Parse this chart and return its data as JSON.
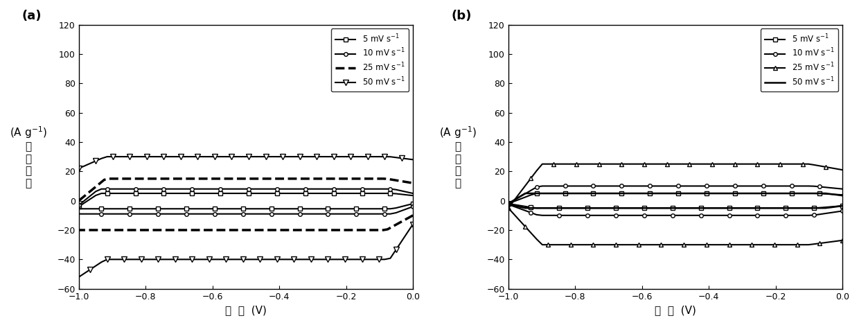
{
  "fig_width": 12.4,
  "fig_height": 4.69,
  "dpi": 100,
  "xlabel": "电  压  (V)",
  "panel_labels": [
    "(a)",
    "(b)"
  ],
  "xlim": [
    -1.0,
    0.0
  ],
  "ylim": [
    -60,
    120
  ],
  "yticks": [
    -60,
    -40,
    -20,
    0,
    20,
    40,
    60,
    80,
    100,
    120
  ],
  "xticks": [
    -1.0,
    -0.8,
    -0.6,
    -0.4,
    -0.2,
    0.0
  ],
  "panel_a": {
    "curves": [
      {
        "label": "5 mV s$^{-1}$",
        "lw": 1.5,
        "ls": "-",
        "marker": "s",
        "ms": 4.0,
        "y_top": 5.0,
        "y_bot": -5.5,
        "y_top_L": -4.0,
        "y_bot_L": -5.5,
        "y_top_R": 3.5,
        "y_bot_R": -2.0,
        "trans_L": 0.06,
        "trans_R": 0.06,
        "markevery": 5
      },
      {
        "label": "10 mV s$^{-1}$",
        "lw": 1.5,
        "ls": "-",
        "marker": "o",
        "ms": 4.0,
        "y_top": 8.0,
        "y_bot": -9.0,
        "y_top_L": -3.0,
        "y_bot_L": -9.0,
        "y_top_R": 5.0,
        "y_bot_R": -4.0,
        "trans_L": 0.06,
        "trans_R": 0.06,
        "markevery": 5
      },
      {
        "label": "25 mV s$^{-1}$",
        "lw": 2.5,
        "ls": "--",
        "marker": "",
        "ms": 0,
        "y_top": 15.0,
        "y_bot": -20.0,
        "y_top_L": 0.0,
        "y_bot_L": -20.0,
        "y_top_R": 12.0,
        "y_bot_R": -10.0,
        "trans_L": 0.08,
        "trans_R": 0.08,
        "markevery": 1
      },
      {
        "label": "50 mV s$^{-1}$",
        "lw": 1.5,
        "ls": "-",
        "marker": "v",
        "ms": 5.5,
        "y_top": 30.0,
        "y_bot": -40.0,
        "y_top_L": 22.0,
        "y_bot_L": -52.0,
        "y_top_R": 28.0,
        "y_bot_R": -16.0,
        "trans_L": 0.08,
        "trans_R": 0.07,
        "markevery": 3
      }
    ]
  },
  "panel_b": {
    "curves": [
      {
        "label": "5 mV s$^{-1}$",
        "lw": 1.5,
        "ls": "-",
        "marker": "s",
        "ms": 4.0,
        "y_top": 5.0,
        "y_bot": -5.0,
        "y_top_L": -2.0,
        "y_bot_L": -2.0,
        "y_top_R": 4.0,
        "y_bot_R": -3.5,
        "trans_L": 0.08,
        "trans_R": 0.08,
        "markevery": 5
      },
      {
        "label": "10 mV s$^{-1}$",
        "lw": 1.5,
        "ls": "-",
        "marker": "o",
        "ms": 4.0,
        "y_top": 10.0,
        "y_bot": -10.0,
        "y_top_L": -2.0,
        "y_bot_L": -2.5,
        "y_top_R": 8.0,
        "y_bot_R": -7.0,
        "trans_L": 0.09,
        "trans_R": 0.09,
        "markevery": 5
      },
      {
        "label": "25 mV s$^{-1}$",
        "lw": 1.5,
        "ls": "-",
        "marker": "^",
        "ms": 4.5,
        "y_top": 25.0,
        "y_bot": -30.0,
        "y_top_L": -5.0,
        "y_bot_L": -5.0,
        "y_top_R": 21.0,
        "y_bot_R": -27.0,
        "trans_L": 0.1,
        "trans_R": 0.1,
        "markevery": 4
      },
      {
        "label": "50 mV s$^{-1}$",
        "lw": 1.8,
        "ls": "-",
        "marker": "",
        "ms": 0,
        "y_top": 5.0,
        "y_bot": -5.0,
        "y_top_L": -2.0,
        "y_bot_L": -2.5,
        "y_top_R": 3.5,
        "y_bot_R": -3.5,
        "trans_L": 0.05,
        "trans_R": 0.05,
        "markevery": 1
      }
    ]
  }
}
